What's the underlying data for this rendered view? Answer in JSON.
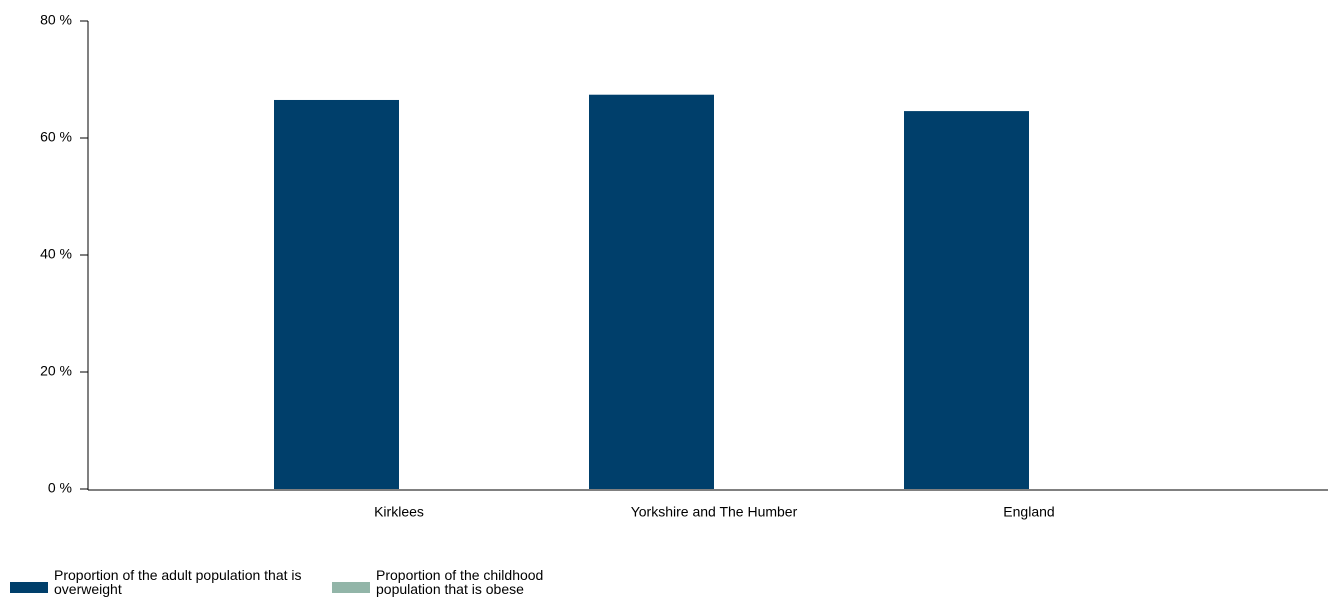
{
  "chart_data": {
    "type": "bar",
    "categories": [
      "Kirklees",
      "Yorkshire and The Humber",
      "England"
    ],
    "series": [
      {
        "name": "Proportion of the adult population that is overweight",
        "color": "#003f6b",
        "values": [
          66.5,
          67.4,
          64.6
        ]
      },
      {
        "name": "Proportion of the childhood population that is obese",
        "color": "#92b5a8",
        "values": [
          null,
          null,
          null
        ]
      }
    ],
    "ylim": [
      0,
      80
    ],
    "yticks": [
      {
        "value": 0,
        "label": "0 %"
      },
      {
        "value": 20,
        "label": "20 %"
      },
      {
        "value": 40,
        "label": "40 %"
      },
      {
        "value": 60,
        "label": "60 %"
      },
      {
        "value": 80,
        "label": "80 %"
      }
    ],
    "grid": false
  }
}
